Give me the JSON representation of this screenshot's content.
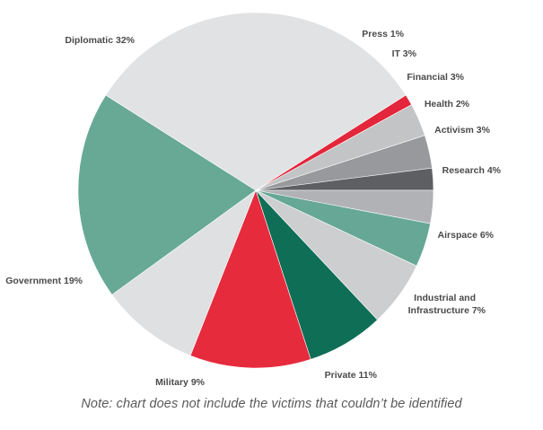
{
  "chart_data": {
    "type": "pie",
    "title": "",
    "slices": [
      {
        "label": "Press 1%",
        "value": 1,
        "color": "#e3263b"
      },
      {
        "label": "IT 3%",
        "value": 3,
        "color": "#c3c4c6"
      },
      {
        "label": "Financial 3%",
        "value": 3,
        "color": "#98999c"
      },
      {
        "label": "Health 2%",
        "value": 2,
        "color": "#5e5f62"
      },
      {
        "label": "Activism 3%",
        "value": 3,
        "color": "#b1b2b5"
      },
      {
        "label": "Research 4%",
        "value": 4,
        "color": "#66a895"
      },
      {
        "label": "Airspace 6%",
        "value": 6,
        "color": "#cdcecf"
      },
      {
        "label": "Industrial and|Infrastructure 7%",
        "value": 7,
        "color": "#0e6e56"
      },
      {
        "label": "Private 11%",
        "value": 11,
        "color": "#e62b3d"
      },
      {
        "label": "Military 9%",
        "value": 9,
        "color": "#dfe0e1"
      },
      {
        "label": "Government 19%",
        "value": 19,
        "color": "#68a996"
      },
      {
        "label": "Diplomatic 32%",
        "value": 32,
        "color": "#e1e2e3"
      }
    ],
    "direction": "clockwise",
    "start": "top-right"
  },
  "note": "Note: chart does not include the victims that couldn’t be identified"
}
